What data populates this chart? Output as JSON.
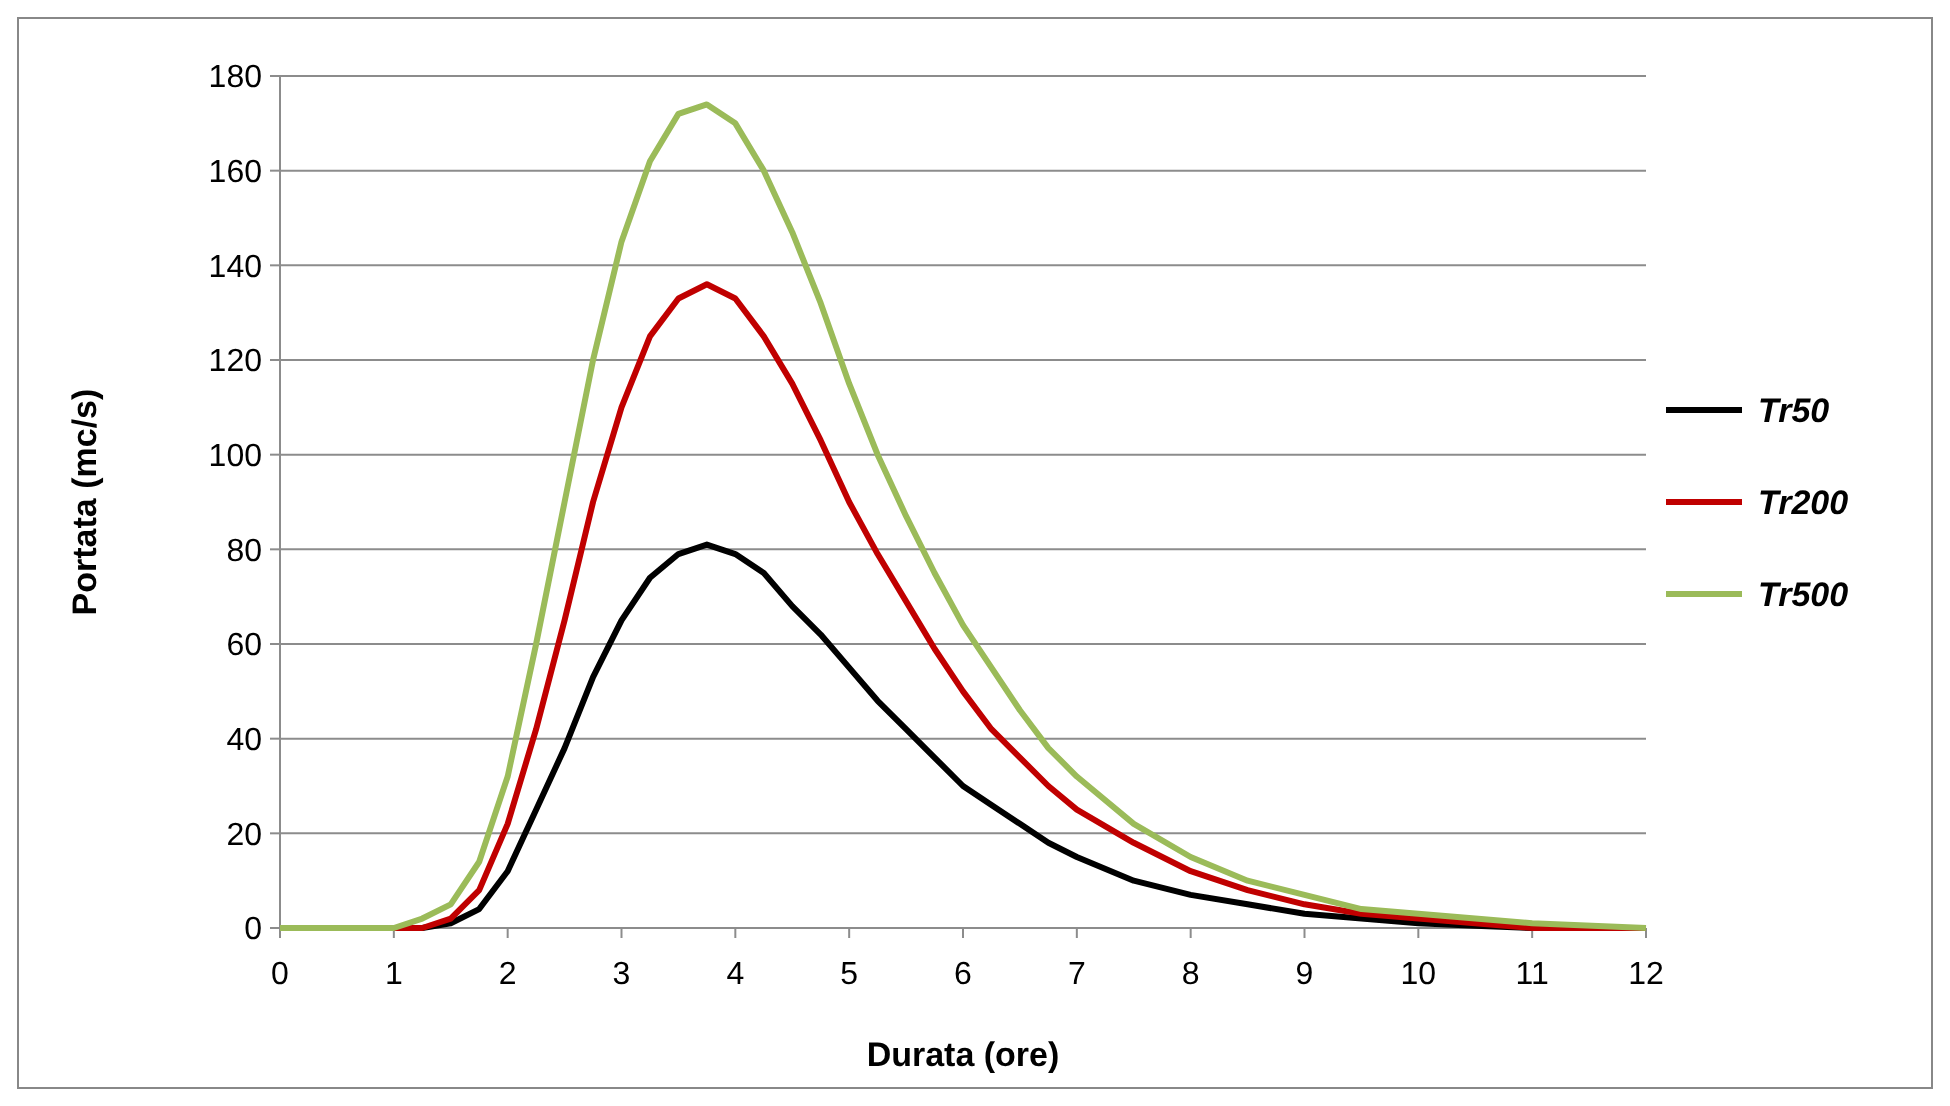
{
  "chart_data": {
    "type": "line",
    "xlabel": "Durata (ore)",
    "ylabel": "Portata (mc/s)",
    "xlim": [
      0,
      12
    ],
    "xticks": [
      0,
      1,
      2,
      3,
      4,
      5,
      6,
      7,
      8,
      9,
      10,
      11,
      12
    ],
    "ylim": [
      0,
      180
    ],
    "yticks": [
      0,
      20,
      40,
      60,
      80,
      100,
      120,
      140,
      160,
      180
    ],
    "grid": "y",
    "legend": "right",
    "marker": "none",
    "line_style": "solid",
    "x": [
      0,
      1,
      1.25,
      1.5,
      1.75,
      2,
      2.25,
      2.5,
      2.75,
      3,
      3.25,
      3.5,
      3.75,
      4,
      4.25,
      4.5,
      4.75,
      5,
      5.25,
      5.5,
      5.75,
      6,
      6.25,
      6.5,
      6.75,
      7,
      7.5,
      8,
      8.5,
      9,
      9.5,
      10,
      10.5,
      11,
      12
    ],
    "series": [
      {
        "name": "Tr50",
        "color": "#000000",
        "values": [
          0,
          0,
          0,
          1,
          4,
          12,
          25,
          38,
          53,
          65,
          74,
          79,
          81,
          79,
          75,
          68,
          62,
          55,
          48,
          42,
          36,
          30,
          26,
          22,
          18,
          15,
          10,
          7,
          5,
          3,
          2,
          1,
          0.5,
          0,
          0
        ]
      },
      {
        "name": "Tr200",
        "color": "#c00000",
        "values": [
          0,
          0,
          0,
          2,
          8,
          22,
          42,
          65,
          90,
          110,
          125,
          133,
          136,
          133,
          125,
          115,
          103,
          90,
          79,
          69,
          59,
          50,
          42,
          36,
          30,
          25,
          18,
          12,
          8,
          5,
          3,
          2,
          1,
          0,
          0
        ]
      },
      {
        "name": "Tr500",
        "color": "#9bbb59",
        "values": [
          0,
          0,
          2,
          5,
          14,
          32,
          60,
          90,
          120,
          145,
          162,
          172,
          174,
          170,
          160,
          147,
          132,
          115,
          100,
          87,
          75,
          64,
          55,
          46,
          38,
          32,
          22,
          15,
          10,
          7,
          4,
          3,
          2,
          1,
          0
        ]
      }
    ]
  }
}
